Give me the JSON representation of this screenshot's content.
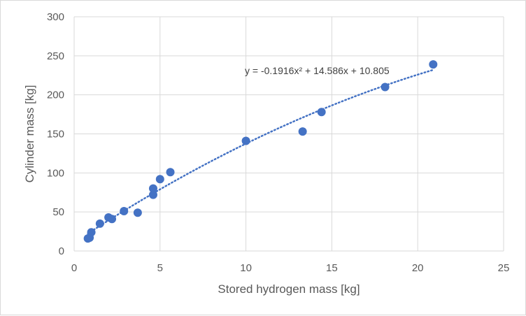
{
  "chart_data": {
    "type": "scatter",
    "title": "",
    "xlabel": "Stored hydrogen mass [kg]",
    "ylabel": "Cylinder mass [kg]",
    "xlim": [
      0,
      25
    ],
    "ylim": [
      0,
      300
    ],
    "x_ticks": [
      "0",
      "5",
      "10",
      "15",
      "20",
      "25"
    ],
    "y_ticks": [
      "0",
      "50",
      "100",
      "150",
      "200",
      "250",
      "300"
    ],
    "grid": true,
    "legend": "none",
    "marker_color": "#4472C4",
    "series": [
      {
        "points": [
          {
            "x": 0.8,
            "y": 16
          },
          {
            "x": 0.9,
            "y": 17
          },
          {
            "x": 1.0,
            "y": 24
          },
          {
            "x": 1.5,
            "y": 35
          },
          {
            "x": 2.0,
            "y": 43
          },
          {
            "x": 2.2,
            "y": 41
          },
          {
            "x": 2.9,
            "y": 51
          },
          {
            "x": 3.7,
            "y": 49
          },
          {
            "x": 4.6,
            "y": 72
          },
          {
            "x": 4.6,
            "y": 80
          },
          {
            "x": 5.0,
            "y": 92
          },
          {
            "x": 5.6,
            "y": 101
          },
          {
            "x": 10.0,
            "y": 141
          },
          {
            "x": 13.3,
            "y": 153
          },
          {
            "x": 14.4,
            "y": 178
          },
          {
            "x": 18.1,
            "y": 210
          },
          {
            "x": 20.9,
            "y": 239
          }
        ]
      }
    ],
    "trendline": {
      "type": "polynomial",
      "coefficients": {
        "a": -0.1916,
        "b": 14.586,
        "c": 10.805
      },
      "x_range": [
        0.8,
        20.9
      ],
      "style": "dotted",
      "equation_label": "y = -0.1916x² + 14.586x + 10.805"
    }
  }
}
